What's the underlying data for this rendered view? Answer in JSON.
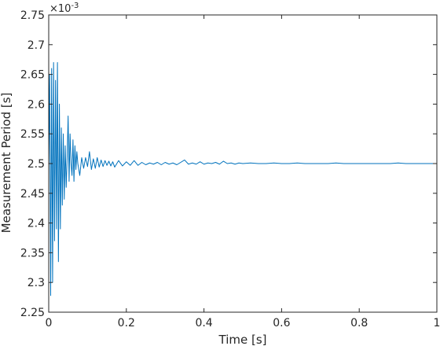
{
  "chart_data": {
    "type": "line",
    "title": "",
    "xlabel": "Time [s]",
    "ylabel": "Measurement Period [s]",
    "xlim": [
      0,
      1
    ],
    "ylim": [
      2.25,
      2.75
    ],
    "y_multiplier": {
      "base": "×10",
      "exponent": "-3"
    },
    "x_ticks": [
      "0",
      "0.2",
      "0.4",
      "0.6",
      "0.8",
      "1"
    ],
    "y_ticks": [
      "2.25",
      "2.3",
      "2.35",
      "2.4",
      "2.45",
      "2.5",
      "2.55",
      "2.6",
      "2.65",
      "2.7",
      "2.75"
    ],
    "grid": false,
    "legend": "none",
    "line_color": "#0072BD",
    "series": [
      {
        "x": [
          0.0,
          0.0025,
          0.005,
          0.0075,
          0.01,
          0.0125,
          0.015,
          0.0175,
          0.02,
          0.0225,
          0.025,
          0.0275,
          0.03,
          0.0325,
          0.035,
          0.0375,
          0.04,
          0.0425,
          0.045,
          0.0475,
          0.05,
          0.0525,
          0.055,
          0.0575,
          0.06,
          0.0625,
          0.065,
          0.0675,
          0.07,
          0.0725,
          0.075,
          0.08,
          0.085,
          0.09,
          0.095,
          0.1,
          0.105,
          0.11,
          0.115,
          0.12,
          0.125,
          0.13,
          0.135,
          0.14,
          0.145,
          0.15,
          0.155,
          0.16,
          0.165,
          0.17,
          0.18,
          0.19,
          0.2,
          0.21,
          0.22,
          0.23,
          0.24,
          0.25,
          0.26,
          0.27,
          0.28,
          0.29,
          0.3,
          0.31,
          0.32,
          0.33,
          0.34,
          0.35,
          0.36,
          0.37,
          0.38,
          0.39,
          0.4,
          0.41,
          0.42,
          0.43,
          0.44,
          0.45,
          0.46,
          0.47,
          0.48,
          0.49,
          0.5,
          0.52,
          0.54,
          0.56,
          0.58,
          0.6,
          0.62,
          0.64,
          0.66,
          0.68,
          0.7,
          0.72,
          0.74,
          0.76,
          0.78,
          0.8,
          0.82,
          0.84,
          0.86,
          0.88,
          0.9,
          0.92,
          0.94,
          0.96,
          0.98,
          1.0
        ],
        "y": [
          2.5,
          2.65,
          2.278,
          2.66,
          2.3,
          2.67,
          2.37,
          2.64,
          2.39,
          2.67,
          2.335,
          2.6,
          2.39,
          2.56,
          2.43,
          2.55,
          2.44,
          2.53,
          2.46,
          2.51,
          2.58,
          2.47,
          2.55,
          2.5,
          2.48,
          2.54,
          2.47,
          2.53,
          2.49,
          2.52,
          2.5,
          2.48,
          2.51,
          2.492,
          2.51,
          2.495,
          2.52,
          2.49,
          2.508,
          2.492,
          2.51,
          2.494,
          2.506,
          2.495,
          2.505,
          2.497,
          2.504,
          2.496,
          2.503,
          2.494,
          2.505,
          2.496,
          2.503,
          2.497,
          2.505,
          2.497,
          2.502,
          2.498,
          2.501,
          2.499,
          2.502,
          2.498,
          2.502,
          2.499,
          2.501,
          2.498,
          2.502,
          2.506,
          2.499,
          2.501,
          2.499,
          2.503,
          2.499,
          2.501,
          2.5,
          2.502,
          2.499,
          2.504,
          2.5,
          2.501,
          2.499,
          2.501,
          2.5,
          2.501,
          2.5,
          2.5,
          2.501,
          2.5,
          2.5,
          2.501,
          2.5,
          2.5,
          2.5,
          2.5,
          2.501,
          2.5,
          2.5,
          2.5,
          2.5,
          2.5,
          2.5,
          2.5,
          2.501,
          2.5,
          2.5,
          2.5,
          2.5,
          2.5
        ]
      }
    ]
  }
}
